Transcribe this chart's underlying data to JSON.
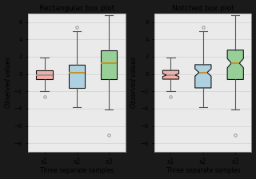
{
  "title1": "Rectangular box plot",
  "title2": "Notched box plot",
  "xlabel": "Three separate samples",
  "ylabel": "Observed values",
  "xtick_labels": [
    "x1",
    "x2",
    "x3"
  ],
  "ylim": [
    -9,
    7
  ],
  "yticks": [
    -8,
    -6,
    -4,
    -2,
    0,
    2,
    4,
    6
  ],
  "box_colors": [
    "#f4a9a0",
    "#a8cfe0",
    "#8fcc8f"
  ],
  "median_colors": [
    "#999999",
    "#c8922a",
    "#c8922a"
  ],
  "whisker_color": "#555555",
  "cap_color": "#555555",
  "flier_color": "#888888",
  "grid_color": "#d5d5d5",
  "axes_bg": "#eaeaea",
  "fig_bg": "#1a1a1a",
  "outer_margin_color": "#1a1a1a",
  "random_seed": 42,
  "figsize": [
    3.2,
    2.24
  ],
  "dpi": 100
}
